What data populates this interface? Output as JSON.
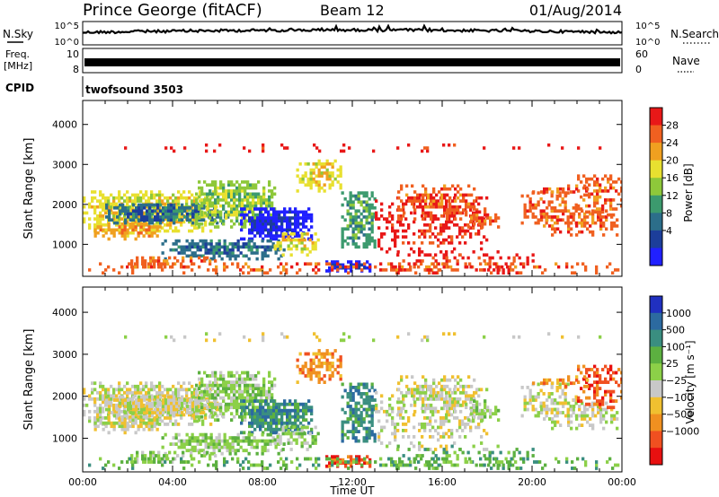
{
  "header": {
    "title": "Prince George (fitACF)",
    "beam": "Beam 12",
    "date": "01/Aug/2014"
  },
  "summary_panels": {
    "nsky_label": "N.Sky",
    "nsearch_label": "N.Search",
    "nsky_ticks": [
      "10^5",
      "10^0"
    ],
    "nsearch_ticks": [
      "10^5",
      "10^0"
    ],
    "freq_label": "Freq.",
    "freq_unit": "[MHz]",
    "freq_ticks": [
      "10",
      "8"
    ],
    "nave_label": "Nave",
    "nave_ticks": [
      "60",
      "0"
    ],
    "cpid_label": "CPID",
    "cpid_value": "twofsound 3503"
  },
  "chart_data": [
    {
      "type": "heatmap",
      "name": "power-panel",
      "ylabel": "Slant Range [km]",
      "xlabel": "",
      "xlim": [
        0,
        24
      ],
      "ylim": [
        200,
        4600
      ],
      "yticks": [
        "1000",
        "2000",
        "3000",
        "4000"
      ],
      "colorbar_label": "Power [dB]",
      "colorbar_ticks": [
        "4",
        "8",
        "12",
        "16",
        "20",
        "24",
        "28"
      ],
      "colorbar_colors": [
        "#2020ff",
        "#1c3e9a",
        "#2c6e8a",
        "#3c9a6e",
        "#8ec83a",
        "#e8e030",
        "#f0a020",
        "#f06020",
        "#e81818"
      ]
    },
    {
      "type": "heatmap",
      "name": "velocity-panel",
      "ylabel": "Slant Range [km]",
      "xlabel": "Time UT",
      "xlim": [
        0,
        24
      ],
      "ylim": [
        200,
        4600
      ],
      "yticks": [
        "1000",
        "2000",
        "3000",
        "4000"
      ],
      "xticks": [
        "00:00",
        "04:00",
        "08:00",
        "12:00",
        "16:00",
        "20:00",
        "00:00"
      ],
      "colorbar_label": "Velocity [m s⁻¹]",
      "colorbar_ticks": [
        "1000",
        "500",
        "100",
        "25",
        "−25",
        "−100",
        "−500",
        "−1000"
      ],
      "colorbar_colors": [
        "#2030c0",
        "#2c6aa0",
        "#3a8e80",
        "#5cb040",
        "#8cd048",
        "#c8c8c8",
        "#f0c030",
        "#f09020",
        "#f05020",
        "#e81010"
      ]
    }
  ]
}
